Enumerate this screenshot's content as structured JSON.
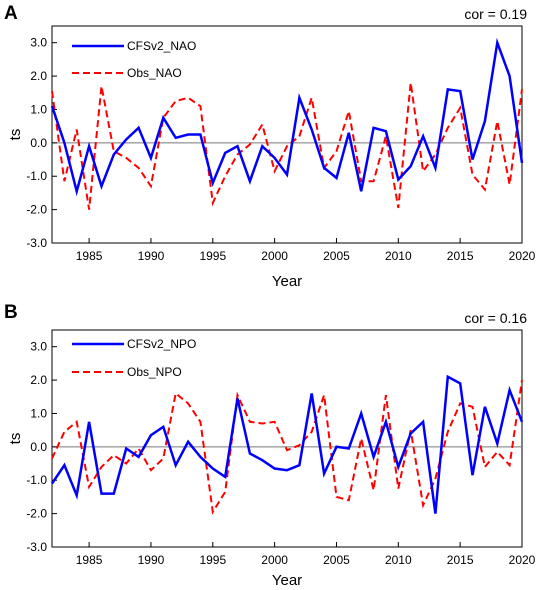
{
  "chart_data": [
    {
      "type": "line",
      "panel_label": "A",
      "annotation": "cor = 0.19",
      "xlabel": "Year",
      "ylabel": "ts",
      "xlim": [
        1982,
        2020
      ],
      "ylim": [
        -3.0,
        3.5
      ],
      "xticks": [
        1985,
        1990,
        1995,
        2000,
        2005,
        2010,
        2015,
        2020
      ],
      "yticks": [
        3.0,
        2.0,
        1.0,
        0.0,
        -1.0,
        -2.0,
        -3.0
      ],
      "ytick_labels": [
        "3.0",
        "2.0",
        "1.0",
        "0.0",
        "-1.0",
        "-2.0",
        "-3.0"
      ],
      "grid": false,
      "legend_position": "upper-left, inside plot",
      "x": [
        1982,
        1983,
        1984,
        1985,
        1986,
        1987,
        1988,
        1989,
        1990,
        1991,
        1992,
        1993,
        1994,
        1995,
        1996,
        1997,
        1998,
        1999,
        2000,
        2001,
        2002,
        2003,
        2004,
        2005,
        2006,
        2007,
        2008,
        2009,
        2010,
        2011,
        2012,
        2013,
        2014,
        2015,
        2016,
        2017,
        2018,
        2019,
        2020
      ],
      "series": [
        {
          "name": "CFSv2_NAO",
          "color": "#0000ff",
          "style": "solid",
          "values": [
            1.1,
            0.0,
            -1.45,
            -0.1,
            -1.3,
            -0.35,
            0.1,
            0.45,
            -0.45,
            0.75,
            0.15,
            0.25,
            0.25,
            -1.2,
            -0.3,
            -0.1,
            -1.15,
            -0.1,
            -0.45,
            -0.95,
            1.35,
            0.4,
            -0.75,
            -1.05,
            0.3,
            -1.45,
            0.45,
            0.35,
            -1.1,
            -0.7,
            0.2,
            -0.75,
            1.6,
            1.55,
            -0.5,
            0.65,
            3.0,
            2.0,
            -0.6
          ]
        },
        {
          "name": "Obs_NAO",
          "color": "#ff0000",
          "style": "dashed",
          "values": [
            1.55,
            -1.15,
            0.4,
            -2.0,
            1.7,
            -0.25,
            -0.45,
            -0.75,
            -1.3,
            0.75,
            1.25,
            1.35,
            1.1,
            -1.8,
            -1.0,
            -0.35,
            -0.05,
            0.55,
            -0.85,
            -0.1,
            0.2,
            1.35,
            -0.75,
            -0.25,
            0.95,
            -1.15,
            -1.15,
            0.2,
            -1.95,
            1.8,
            -0.85,
            -0.35,
            0.45,
            1.05,
            -0.95,
            -1.4,
            0.65,
            -1.25,
            1.6
          ]
        }
      ]
    },
    {
      "type": "line",
      "panel_label": "B",
      "annotation": "cor = 0.16",
      "xlabel": "Year",
      "ylabel": "ts",
      "xlim": [
        1982,
        2020
      ],
      "ylim": [
        -3.0,
        3.5
      ],
      "xticks": [
        1985,
        1990,
        1995,
        2000,
        2005,
        2010,
        2015,
        2020
      ],
      "yticks": [
        3.0,
        2.0,
        1.0,
        0.0,
        -1.0,
        -2.0,
        -3.0
      ],
      "ytick_labels": [
        "3.0",
        "2.0",
        "1.0",
        "0.0",
        "-1.0",
        "-2.0",
        "-3.0"
      ],
      "grid": false,
      "legend_position": "upper-left, inside plot",
      "x": [
        1982,
        1983,
        1984,
        1985,
        1986,
        1987,
        1988,
        1989,
        1990,
        1991,
        1992,
        1993,
        1994,
        1995,
        1996,
        1997,
        1998,
        1999,
        2000,
        2001,
        2002,
        2003,
        2004,
        2005,
        2006,
        2007,
        2008,
        2009,
        2010,
        2011,
        2012,
        2013,
        2014,
        2015,
        2016,
        2017,
        2018,
        2019,
        2020
      ],
      "series": [
        {
          "name": "CFSv2_NPO",
          "color": "#0000ff",
          "style": "solid",
          "values": [
            -1.1,
            -0.55,
            -1.45,
            0.75,
            -1.4,
            -1.4,
            -0.05,
            -0.3,
            0.35,
            0.6,
            -0.55,
            0.15,
            -0.3,
            -0.65,
            -0.9,
            1.45,
            -0.2,
            -0.4,
            -0.65,
            -0.7,
            -0.55,
            1.6,
            -0.8,
            0.0,
            -0.05,
            1.0,
            -0.3,
            0.75,
            -0.6,
            0.4,
            0.75,
            -2.0,
            2.1,
            1.9,
            -0.85,
            1.2,
            0.1,
            1.7,
            0.75
          ]
        },
        {
          "name": "Obs_NPO",
          "color": "#ff0000",
          "style": "dashed",
          "values": [
            -0.35,
            0.45,
            0.75,
            -1.2,
            -0.6,
            -0.25,
            -0.5,
            -0.05,
            -0.7,
            -0.35,
            1.6,
            1.3,
            0.75,
            -1.95,
            -1.35,
            1.55,
            0.75,
            0.7,
            0.75,
            -0.1,
            0.05,
            0.45,
            1.55,
            -1.5,
            -1.6,
            0.25,
            -1.3,
            1.55,
            -1.25,
            0.5,
            -1.75,
            -0.95,
            0.45,
            1.3,
            1.2,
            -0.6,
            -0.15,
            -0.55,
            2.0
          ]
        }
      ]
    }
  ]
}
